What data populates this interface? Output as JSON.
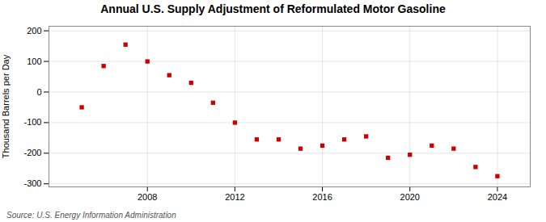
{
  "chart_data": {
    "type": "scatter",
    "title": "Annual U.S. Supply Adjustment of Reformulated Motor Gasoline",
    "ylabel": "Thousand Barrels per Day",
    "annotations": [
      "Source: U.S. Energy Information Administration"
    ],
    "x": [
      2005,
      2006,
      2007,
      2008,
      2009,
      2010,
      2011,
      2012,
      2013,
      2014,
      2015,
      2016,
      2017,
      2018,
      2019,
      2020,
      2021,
      2022,
      2023,
      2024
    ],
    "values": [
      -50,
      85,
      155,
      100,
      55,
      30,
      -35,
      -100,
      -155,
      -155,
      -185,
      -175,
      -155,
      -145,
      -215,
      -205,
      -175,
      -185,
      -245,
      -275
    ],
    "color": "#cc0000",
    "marker": "square",
    "xlim": [
      2003.5,
      2025.5
    ],
    "xticks": [
      2008,
      2012,
      2016,
      2020,
      2024
    ],
    "ylim": [
      -310,
      215
    ],
    "yticks": [
      -300,
      -200,
      -100,
      0,
      100,
      200
    ],
    "grid": true
  }
}
